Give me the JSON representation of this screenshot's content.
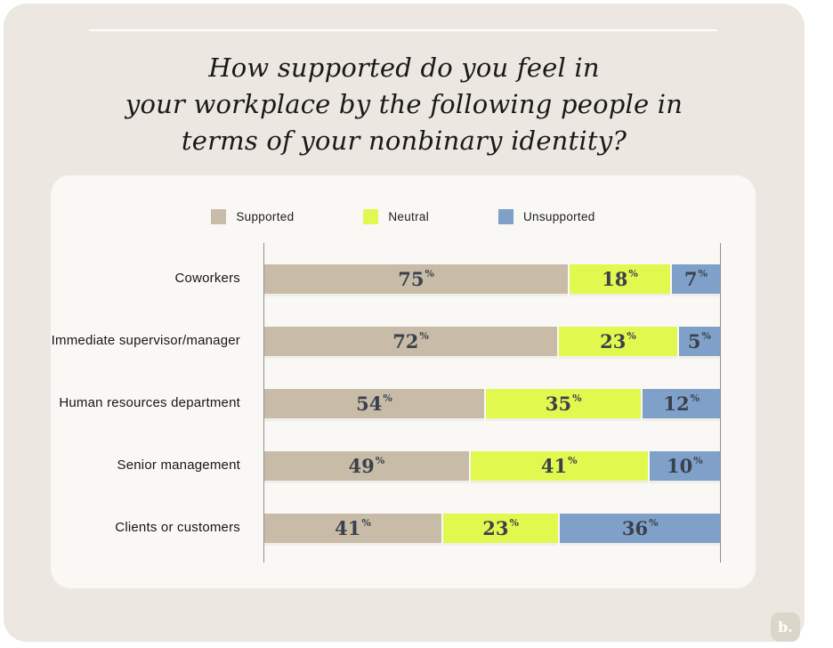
{
  "page": {
    "background": "#FFFFFF",
    "card_background": "#ECE7E1",
    "panel_background": "#F9F8F5"
  },
  "title": {
    "lines": [
      "How supported do you feel in",
      "your workplace by the following people in",
      "terms of your nonbinary identity?"
    ]
  },
  "legend": [
    {
      "label": "Supported",
      "color": "#C8BCA9"
    },
    {
      "label": "Neutral",
      "color": "#E1F94F"
    },
    {
      "label": "Unsupported",
      "color": "#7FA1C9"
    }
  ],
  "chart_data": {
    "type": "bar",
    "orientation": "horizontal",
    "stacked": true,
    "unit": "%",
    "xlim": [
      0,
      100
    ],
    "grid": false,
    "legend_position": "top",
    "value_labels": true,
    "categories": [
      "Coworkers",
      "Immediate supervisor/manager",
      "Human resources department",
      "Senior management",
      "Clients or customers"
    ],
    "series": [
      {
        "name": "Supported",
        "color": "#C8BCA9",
        "values": [
          75,
          72,
          54,
          49,
          41
        ]
      },
      {
        "name": "Neutral",
        "color": "#E1F94F",
        "values": [
          18,
          23,
          35,
          41,
          23
        ]
      },
      {
        "name": "Unsupported",
        "color": "#7FA1C9",
        "values": [
          7,
          5,
          12,
          10,
          36
        ]
      }
    ],
    "value_label_color": "#3A414B"
  },
  "footer": {
    "logo_text": "b."
  }
}
